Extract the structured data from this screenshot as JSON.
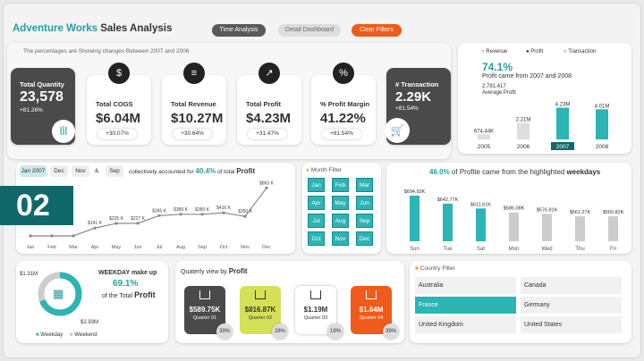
{
  "header": {
    "title_a": "Adventure Works",
    "title_b": "Sales Analysis",
    "subtitle": "The percentages are Showing changes Between 2007 and 2006",
    "buttons": [
      "Time Analysis",
      "Detail Dashboard",
      "Clear Filters"
    ]
  },
  "kpis": [
    {
      "label": "Total Quantity",
      "value": "23,578",
      "change": "+81.26%"
    },
    {
      "label": "Total COGS",
      "value": "$6.04M",
      "change": "+30.07%"
    },
    {
      "label": "Total Revenue",
      "value": "$10.27M",
      "change": "+30.64%"
    },
    {
      "label": "Total Profit",
      "value": "$4.23M",
      "change": "+31.47%"
    },
    {
      "label": "% Profit Margin",
      "value": "41.22%",
      "change": "+81.54%"
    },
    {
      "label": "# Transaction",
      "value": "2.29K",
      "change": "+81.54%"
    }
  ],
  "trend": {
    "radios": [
      "Revenue",
      "Profit",
      "Transaction"
    ],
    "pct": "74.1%",
    "text": "Profit came from 2007  and  2008",
    "avg_value": "2,781,417",
    "avg_label": "Average  Profit",
    "years": [
      "2005",
      "2006",
      "2007",
      "2008"
    ],
    "values_m": [
      0.674,
      2.21,
      4.23,
      4.01
    ],
    "labels": [
      "674.44K",
      "2.21M",
      "4.23M",
      "4.01M"
    ]
  },
  "monthly": {
    "chips": [
      "Jan 2007",
      "Dec",
      "Nov",
      "&",
      "Sep"
    ],
    "text1": "collectively accounted for",
    "pct": "40.4%",
    "text2": "of total",
    "text3": "Profit",
    "months": [
      "Jan",
      "Feb",
      "Mar",
      "Apr",
      "May",
      "Jun",
      "Jul",
      "Aug",
      "Sep",
      "Oct",
      "Nov",
      "Dec"
    ],
    "values_k": [
      null,
      null,
      null,
      141,
      225,
      227,
      365,
      389,
      389,
      416,
      350,
      863
    ],
    "point_labels": [
      "",
      "",
      "",
      "$141 K",
      "$225 K",
      "$227 K",
      "$365 K",
      "$389 K",
      "$389 K",
      "$416 K",
      "$350 K",
      "$863 K"
    ],
    "overlay": "02"
  },
  "month_filter": {
    "title": "Month Filter",
    "months": [
      "Jan",
      "Feb",
      "Mar",
      "Apr",
      "May",
      "Jun",
      "Jul",
      "Aug",
      "Sep",
      "Oct",
      "Nov",
      "Dec"
    ]
  },
  "weekdays": {
    "pct": "46.0%",
    "text": "of Profite came from the highlighted",
    "bold": "weekdays",
    "days": [
      "Sun",
      "Tue",
      "Sat",
      "Mon",
      "Wed",
      "Thu",
      "Fri"
    ],
    "values_k": [
      694.93,
      642.77,
      611.61,
      586.08,
      576.81,
      561.27,
      560.82
    ],
    "labels": [
      "$694.93K",
      "$642.77K",
      "$611.61K",
      "$586.08K",
      "$576.81K",
      "$561.27K",
      "$560.82K"
    ],
    "highlight": [
      true,
      true,
      true,
      false,
      false,
      false,
      false
    ]
  },
  "donut": {
    "top": "$1.31M",
    "bottom": "$2.93M",
    "title": "WEEKDAY make up",
    "pct": "69.1%",
    "text": "of the Total",
    "bold": "Profit",
    "legend": [
      "Weekday",
      "Weekend"
    ]
  },
  "quarterly": {
    "title": "Quaterly view by",
    "bold": "Profit",
    "cards": [
      {
        "value": "$589.75K",
        "label": "Quarter 01",
        "pct": "39%"
      },
      {
        "value": "$816.87K",
        "label": "Quarter 02",
        "pct": "28%"
      },
      {
        "value": "$1.19M",
        "label": "Quarter 03",
        "pct": "19%"
      },
      {
        "value": "$1.64M",
        "label": "Quarter 04",
        "pct": "39%"
      }
    ]
  },
  "country": {
    "title": "Country Filter",
    "items": [
      "Australia",
      "Canada",
      "France",
      "Germany",
      "United Kingdom",
      "United States"
    ],
    "selected": "France"
  },
  "colors": {
    "teal": "#2db4b4",
    "dark": "#4a4a4a",
    "orange": "#f05a1a",
    "lime": "#d4e157"
  }
}
